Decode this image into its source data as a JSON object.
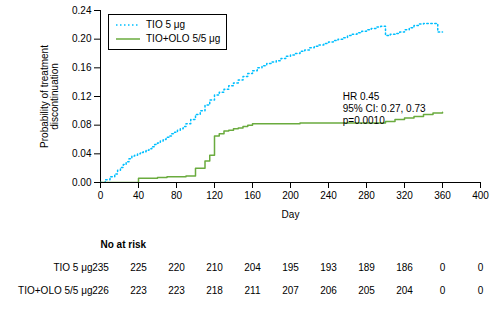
{
  "chart_data": {
    "type": "line",
    "series": [
      {
        "name": "TIO 5 μg",
        "color": "#00BFFF",
        "line_style": "dotted",
        "x": [
          0,
          5,
          10,
          15,
          18,
          21,
          24,
          27,
          30,
          33,
          36,
          39,
          42,
          45,
          48,
          51,
          54,
          57,
          60,
          63,
          66,
          69,
          72,
          75,
          78,
          81,
          84,
          87,
          90,
          95,
          100,
          105,
          110,
          115,
          120,
          125,
          130,
          135,
          140,
          145,
          150,
          155,
          160,
          165,
          170,
          175,
          180,
          185,
          190,
          195,
          200,
          205,
          210,
          215,
          220,
          225,
          230,
          235,
          240,
          245,
          250,
          255,
          260,
          265,
          270,
          275,
          280,
          285,
          290,
          295,
          300,
          305,
          310,
          315,
          320,
          325,
          330,
          335,
          340,
          345,
          350,
          355,
          360
        ],
        "values": [
          0.0,
          0.004,
          0.008,
          0.012,
          0.017,
          0.021,
          0.025,
          0.029,
          0.033,
          0.037,
          0.038,
          0.04,
          0.042,
          0.043,
          0.045,
          0.047,
          0.05,
          0.053,
          0.055,
          0.058,
          0.06,
          0.063,
          0.065,
          0.068,
          0.07,
          0.073,
          0.075,
          0.078,
          0.082,
          0.088,
          0.095,
          0.1,
          0.108,
          0.115,
          0.122,
          0.126,
          0.13,
          0.135,
          0.139,
          0.143,
          0.148,
          0.152,
          0.156,
          0.16,
          0.163,
          0.166,
          0.168,
          0.17,
          0.173,
          0.176,
          0.178,
          0.18,
          0.183,
          0.185,
          0.188,
          0.19,
          0.192,
          0.194,
          0.196,
          0.198,
          0.2,
          0.202,
          0.205,
          0.207,
          0.209,
          0.211,
          0.213,
          0.215,
          0.217,
          0.218,
          0.205,
          0.207,
          0.208,
          0.21,
          0.213,
          0.216,
          0.219,
          0.221,
          0.222,
          0.222,
          0.222,
          0.21,
          0.21
        ]
      },
      {
        "name": "TIO+OLO 5/5 μg",
        "color": "#6AAB3E",
        "line_style": "solid",
        "x": [
          0,
          20,
          40,
          60,
          65,
          70,
          80,
          90,
          100,
          110,
          115,
          120,
          125,
          130,
          135,
          140,
          145,
          150,
          155,
          160,
          165,
          200,
          210,
          220,
          290,
          300,
          310,
          320,
          330,
          340,
          350,
          360
        ],
        "values": [
          0.0,
          0.0,
          0.006,
          0.007,
          0.007,
          0.008,
          0.008,
          0.009,
          0.02,
          0.03,
          0.038,
          0.065,
          0.068,
          0.072,
          0.073,
          0.075,
          0.076,
          0.078,
          0.08,
          0.082,
          0.082,
          0.082,
          0.083,
          0.083,
          0.083,
          0.085,
          0.088,
          0.09,
          0.092,
          0.095,
          0.097,
          0.098
        ]
      }
    ],
    "xlabel": "Day",
    "ylabel": "Probability of treatment\ndiscontinuation",
    "xlim": [
      0,
      400
    ],
    "ylim": [
      0,
      0.24
    ],
    "xticks": [
      0,
      40,
      80,
      120,
      160,
      200,
      240,
      280,
      320,
      360,
      400
    ],
    "yticks": [
      {
        "value": 0,
        "label": "0.00"
      },
      0.04,
      0.08,
      0.12,
      0.16,
      {
        "value": 0.2,
        "label": "0.20"
      },
      0.24
    ],
    "grid": false,
    "legend": "upper left",
    "annotations": [
      {
        "text": "HR 0.45",
        "x": 255,
        "y": 0.115
      },
      {
        "text": "95% CI: 0.27, 0.73",
        "x": 255,
        "y": 0.098
      },
      {
        "text": "p=0.0010",
        "x": 255,
        "y": 0.081
      }
    ],
    "risk_table": {
      "title": "No at risk",
      "x": [
        0,
        40,
        80,
        120,
        160,
        200,
        240,
        280,
        320,
        360,
        400
      ],
      "rows": [
        {
          "name": "TIO 5 μg",
          "values": [
            235,
            225,
            220,
            210,
            204,
            195,
            193,
            189,
            186,
            0,
            0
          ]
        },
        {
          "name": "TIO+OLO 5/5 μg",
          "values": [
            226,
            223,
            223,
            218,
            211,
            207,
            206,
            205,
            204,
            0,
            0
          ]
        }
      ]
    }
  }
}
